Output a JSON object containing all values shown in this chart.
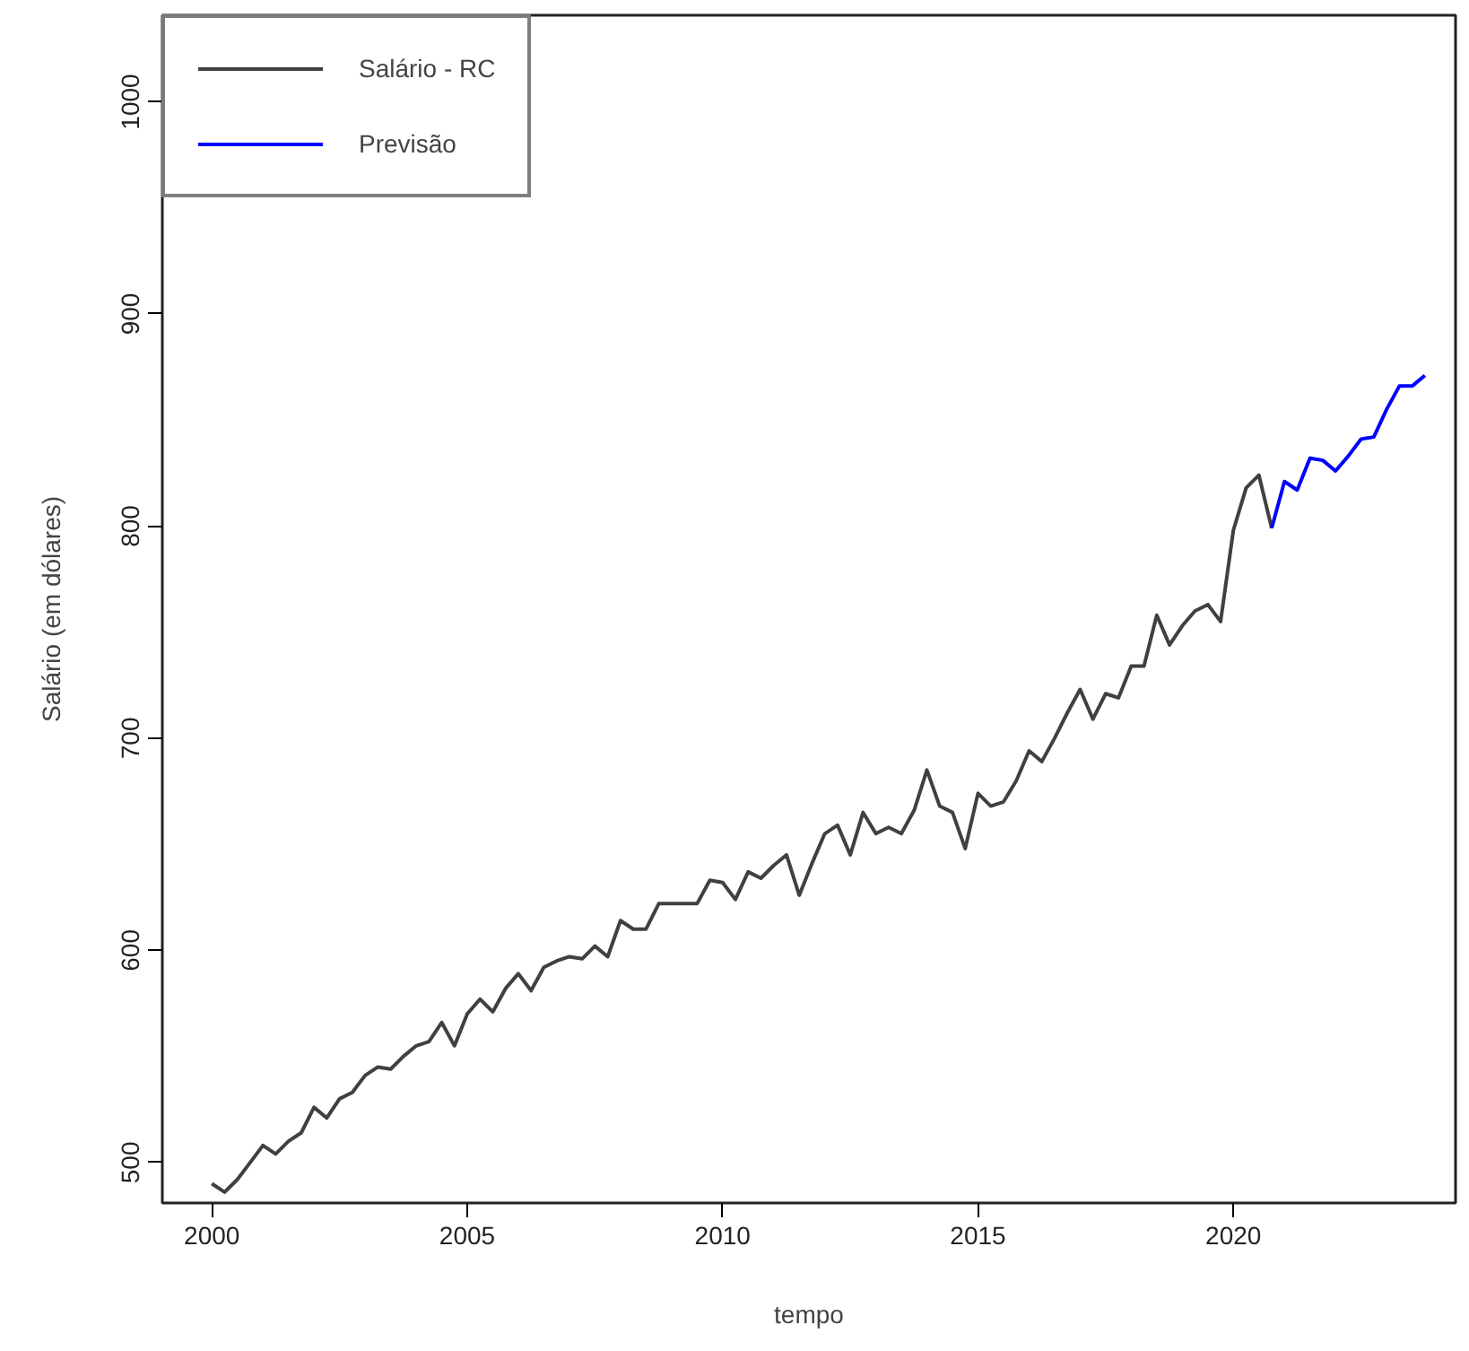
{
  "chart_data": {
    "type": "line",
    "xlabel": "tempo",
    "ylabel": "Salário (em dólares)",
    "xlim": [
      1999.03,
      2024.35
    ],
    "ylim": [
      480.9,
      1040.8
    ],
    "xticks": [
      2000,
      2005,
      2010,
      2015,
      2020
    ],
    "yticks": [
      500,
      600,
      700,
      800,
      900,
      1000
    ],
    "grid": false,
    "legend": "top left",
    "line_style": "solid",
    "series": [
      {
        "name": "Salário - RC",
        "color": "#404040",
        "x": [
          2000.0,
          2000.25,
          2000.5,
          2000.75,
          2001.0,
          2001.25,
          2001.5,
          2001.75,
          2002.0,
          2002.25,
          2002.5,
          2002.75,
          2003.0,
          2003.25,
          2003.5,
          2003.75,
          2004.0,
          2004.25,
          2004.5,
          2004.75,
          2005.0,
          2005.25,
          2005.5,
          2005.75,
          2006.0,
          2006.25,
          2006.5,
          2006.75,
          2007.0,
          2007.25,
          2007.5,
          2007.75,
          2008.0,
          2008.25,
          2008.5,
          2008.75,
          2009.0,
          2009.25,
          2009.5,
          2009.75,
          2010.0,
          2010.25,
          2010.5,
          2010.75,
          2011.0,
          2011.25,
          2011.5,
          2011.75,
          2012.0,
          2012.25,
          2012.5,
          2012.75,
          2013.0,
          2013.25,
          2013.5,
          2013.75,
          2014.0,
          2014.25,
          2014.5,
          2014.75,
          2015.0,
          2015.25,
          2015.5,
          2015.75,
          2016.0,
          2016.25,
          2016.5,
          2016.75,
          2017.0,
          2017.25,
          2017.5,
          2017.75,
          2018.0,
          2018.25,
          2018.5,
          2018.75,
          2019.0,
          2019.25,
          2019.5,
          2019.75,
          2020.0,
          2020.25,
          2020.5,
          2020.75
        ],
        "values": [
          490,
          486,
          492,
          500,
          508,
          504,
          510,
          514,
          526,
          521,
          530,
          533,
          541,
          545,
          544,
          550,
          555,
          557,
          566,
          555,
          570,
          577,
          571,
          582,
          589,
          581,
          592,
          595,
          597,
          596,
          602,
          597,
          614,
          610,
          610,
          622,
          622,
          622,
          622,
          633,
          632,
          624,
          637,
          634,
          640,
          645,
          626,
          641,
          655,
          659,
          645,
          665,
          655,
          658,
          655,
          666,
          685,
          668,
          665,
          648,
          674,
          668,
          670,
          680,
          694,
          689,
          700,
          712,
          723,
          709,
          721,
          719,
          734,
          734,
          758,
          744,
          753,
          760,
          763,
          755,
          798,
          818,
          824,
          799
        ]
      },
      {
        "name": "Previsão",
        "color": "#0000ff",
        "x": [
          2020.75,
          2021.0,
          2021.25,
          2021.5,
          2021.75,
          2022.0,
          2022.25,
          2022.5,
          2022.75,
          2023.0,
          2023.25,
          2023.5,
          2023.75
        ],
        "values": [
          799,
          821,
          817,
          832,
          831,
          826,
          833,
          841,
          842,
          855,
          866,
          866,
          871
        ]
      }
    ]
  }
}
